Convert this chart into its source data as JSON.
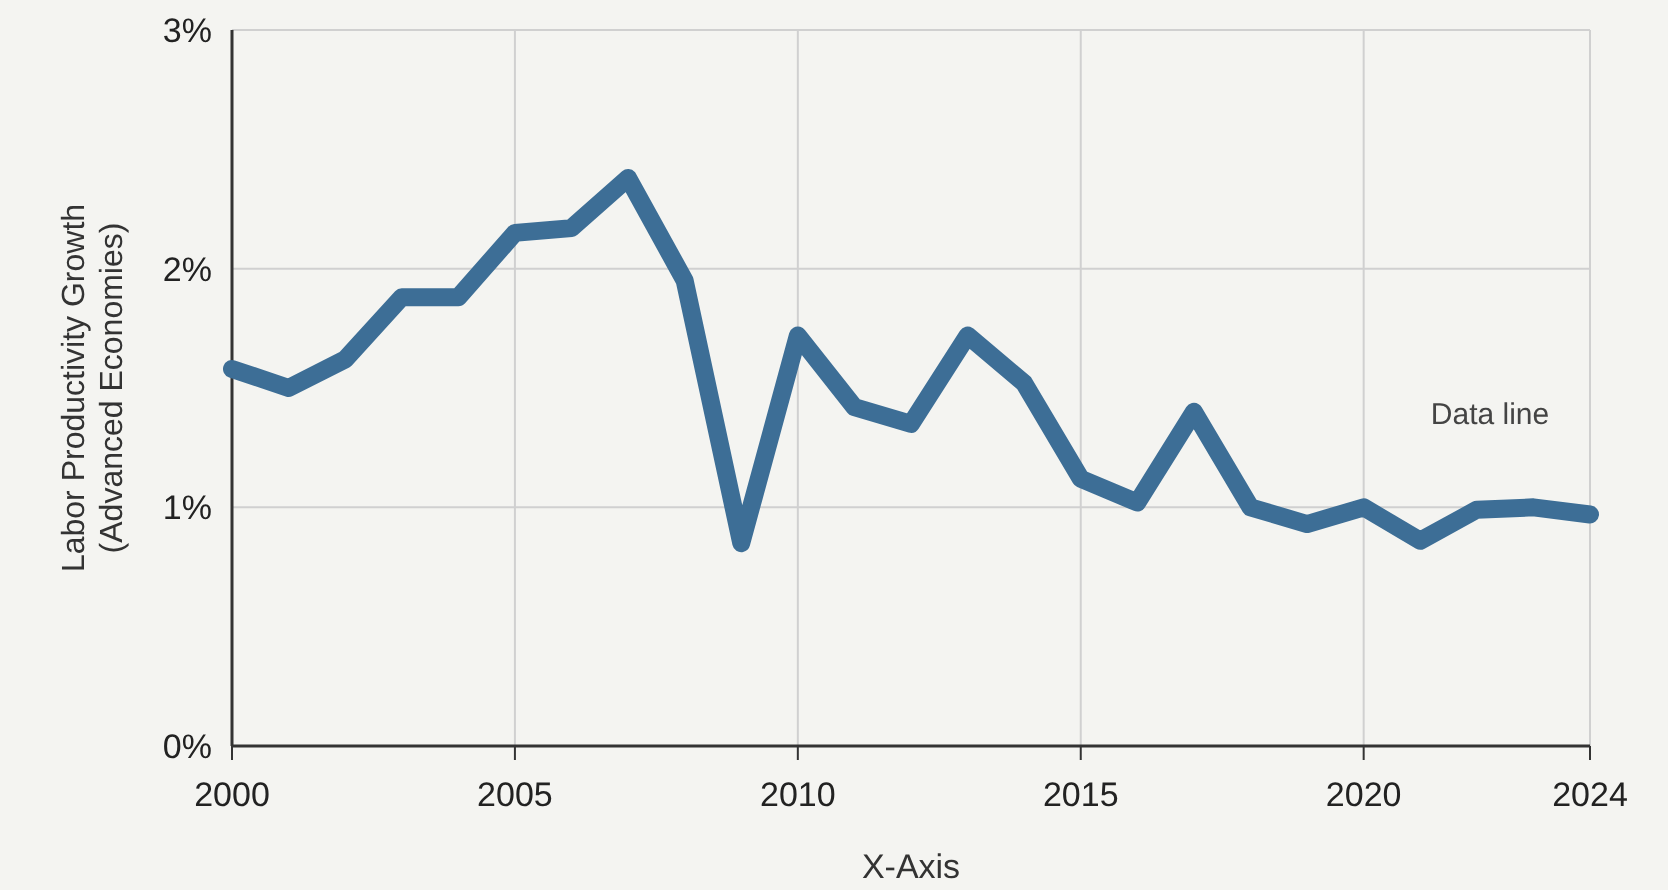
{
  "chart_data": {
    "type": "line",
    "xlabel": "X-Axis",
    "ylabel": "Labor Productivity Growth\n(Advanced Economies)",
    "xlim": [
      2000,
      2024
    ],
    "xticks": [
      2000,
      2005,
      2010,
      2015,
      2020,
      2024
    ],
    "ylim": [
      0,
      3
    ],
    "yticks": [
      {
        "value": 0,
        "label": "0%"
      },
      {
        "value": 1,
        "label": "1%"
      },
      {
        "value": 2,
        "label": "2%"
      },
      {
        "value": 3,
        "label": "3%"
      }
    ],
    "grid": true,
    "x": [
      2000,
      2001,
      2002,
      2003,
      2004,
      2005,
      2006,
      2007,
      2008,
      2009,
      2010,
      2011,
      2012,
      2013,
      2014,
      2015,
      2016,
      2017,
      2018,
      2019,
      2020,
      2021,
      2022,
      2023,
      2024
    ],
    "series": [
      {
        "name": "Data line",
        "color": "#3d6e96",
        "values": [
          1.58,
          1.5,
          1.62,
          1.88,
          1.88,
          2.15,
          2.17,
          2.38,
          1.95,
          0.85,
          1.72,
          1.42,
          1.35,
          1.72,
          1.52,
          1.12,
          1.02,
          1.4,
          1.0,
          0.93,
          1.0,
          0.86,
          0.99,
          1.0,
          0.97
        ]
      }
    ]
  }
}
